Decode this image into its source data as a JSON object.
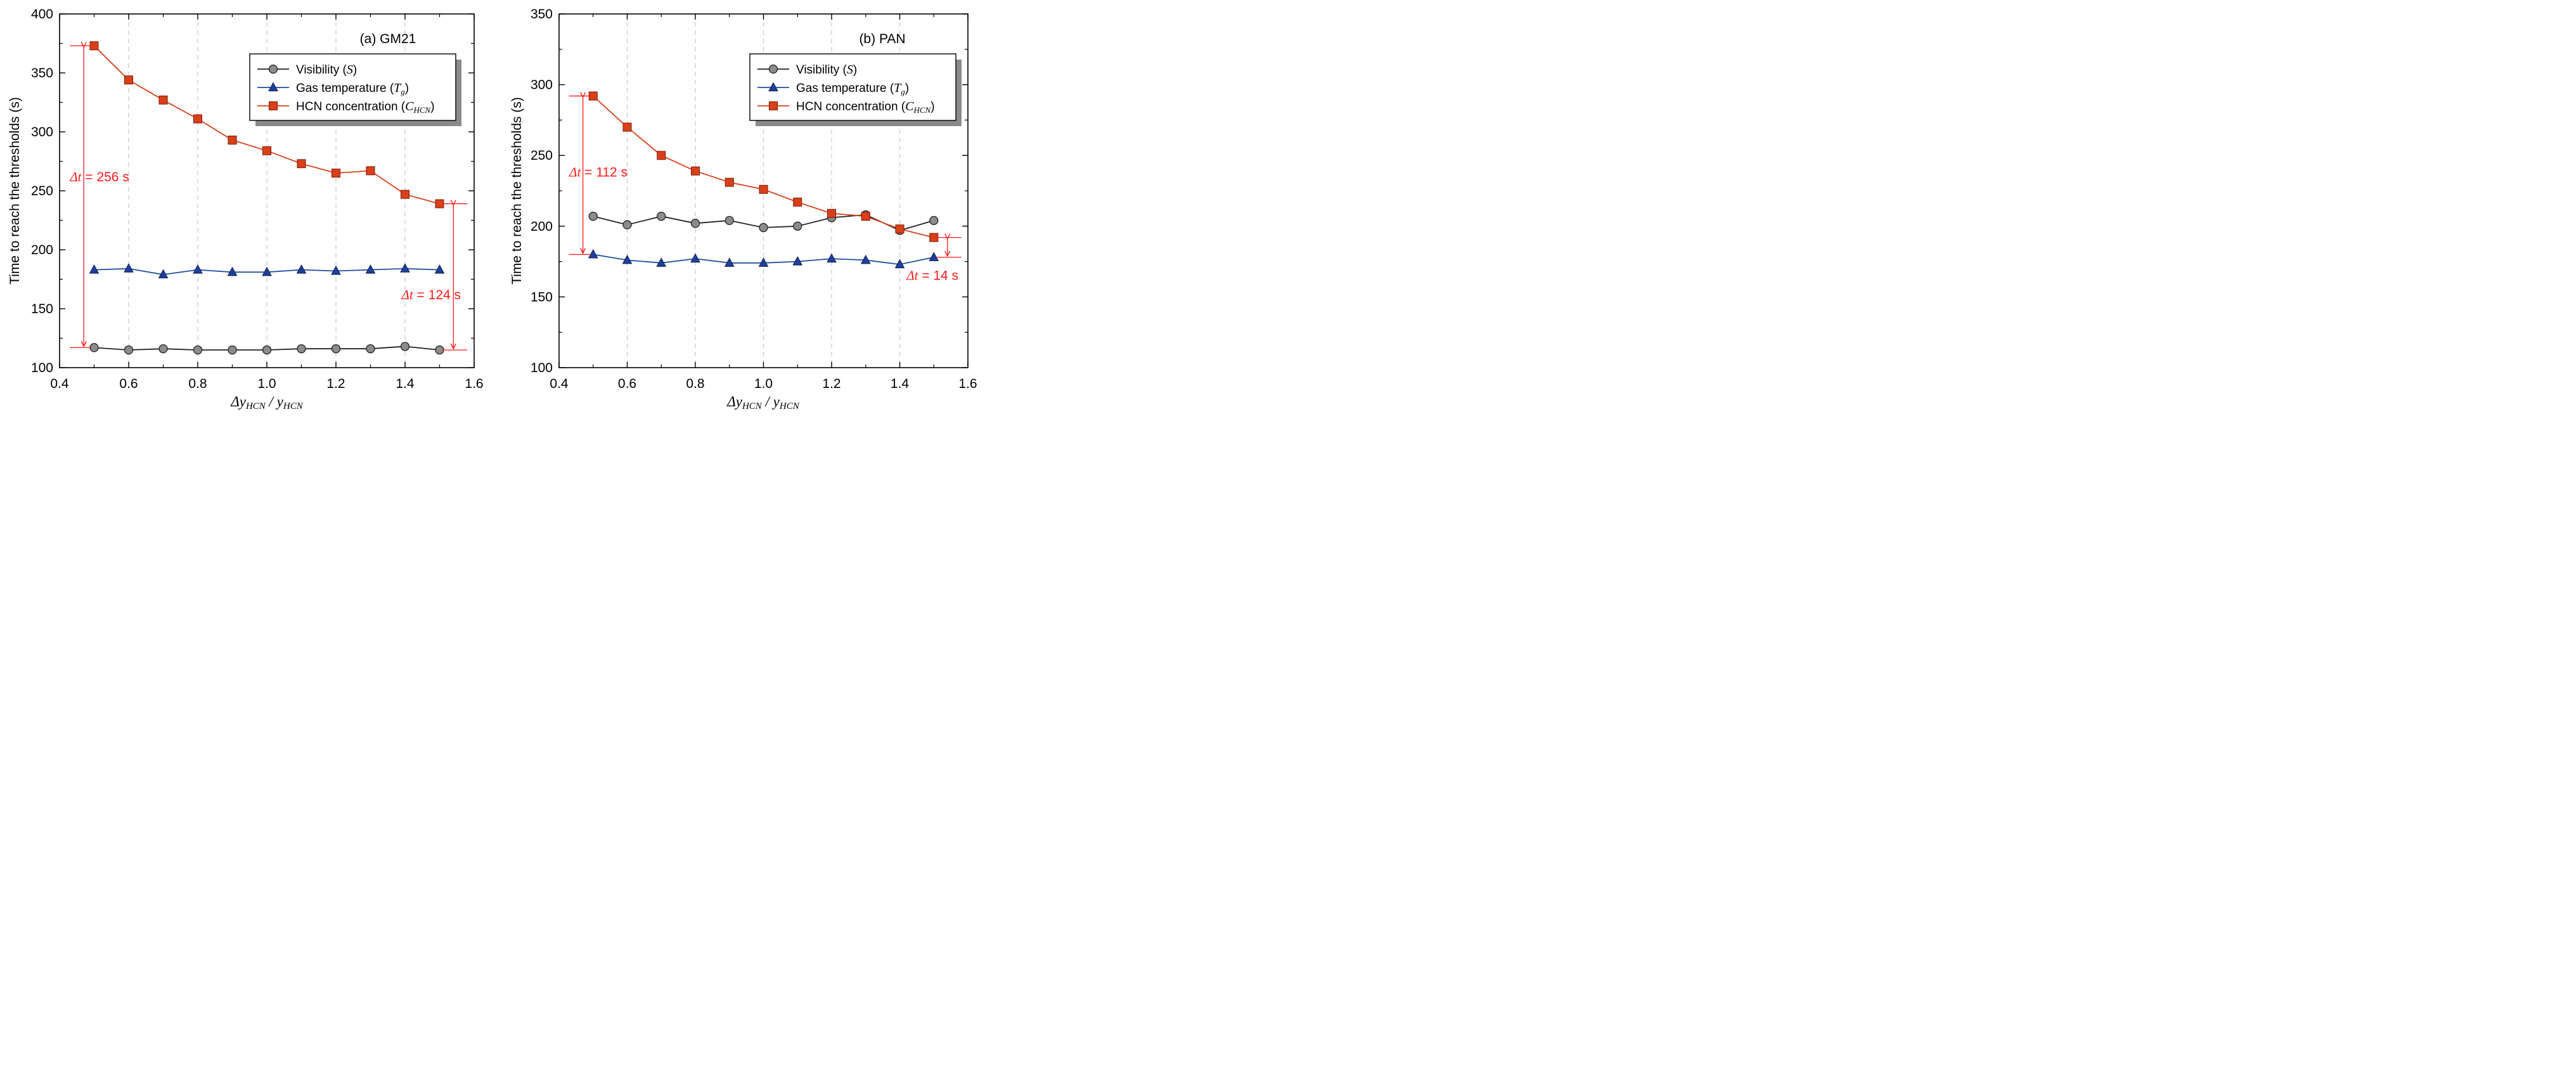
{
  "chart_data": [
    {
      "type": "line",
      "panel_label": "(a) GM21",
      "xlabel": {
        "prefix": "Δy",
        "sub1": "HCN",
        "middle": " / y",
        "sub2": "HCN"
      },
      "ylabel": "Time to reach the thresholds (s)",
      "xlim": [
        0.4,
        1.6
      ],
      "ylim": [
        100,
        400
      ],
      "xticks": [
        0.4,
        0.6,
        0.8,
        1.0,
        1.2,
        1.4,
        1.6
      ],
      "xtick_labels": [
        "0.4",
        "0.6",
        "0.8",
        "1.0",
        "1.2",
        "1.4",
        "1.6"
      ],
      "yticks": [
        100,
        150,
        200,
        250,
        300,
        350,
        400
      ],
      "ytick_labels": [
        "100",
        "150",
        "200",
        "250",
        "300",
        "350",
        "400"
      ],
      "grid": "vertical dashed",
      "legend_position": "top-right",
      "x": [
        0.5,
        0.6,
        0.7,
        0.8,
        0.9,
        1.0,
        1.1,
        1.2,
        1.3,
        1.4,
        1.5
      ],
      "series": [
        {
          "name": "Visibility",
          "symbol": "S",
          "sub": "",
          "color": "#222222",
          "marker": "circle",
          "marker_fill": "#8c8c8c",
          "values": [
            117,
            115,
            116,
            115,
            115,
            115,
            116,
            116,
            116,
            118,
            115
          ]
        },
        {
          "name": "Gas temperature",
          "symbol": "T",
          "sub": "g",
          "color": "#1f4e9e",
          "marker": "triangle",
          "marker_fill": "#1f3f99",
          "values": [
            183,
            184,
            179,
            183,
            181,
            181,
            183,
            182,
            183,
            184,
            183
          ]
        },
        {
          "name": "HCN concentration",
          "symbol": "C",
          "sub": "HCN",
          "color": "#d9401a",
          "marker": "square",
          "marker_fill": "#d9401a",
          "values": [
            373,
            344,
            327,
            311,
            293,
            284,
            273,
            265,
            267,
            247,
            239
          ]
        }
      ],
      "annotations": [
        {
          "label_var": "Δt",
          "label_rest": " = 256 s",
          "x": 0.47,
          "y_from": 117,
          "y_to": 373,
          "label_x": 0.43,
          "label_y": 258
        },
        {
          "label_var": "Δt",
          "label_rest": " = 124 s",
          "x": 1.54,
          "y_from": 115,
          "y_to": 239,
          "label_x": 1.39,
          "label_y": 158
        }
      ]
    },
    {
      "type": "line",
      "panel_label": "(b) PAN",
      "xlabel": {
        "prefix": "Δy",
        "sub1": "HCN",
        "middle": " / y",
        "sub2": "HCN"
      },
      "ylabel": "Time to reach the thresholds (s)",
      "xlim": [
        0.4,
        1.6
      ],
      "ylim": [
        100,
        350
      ],
      "xticks": [
        0.4,
        0.6,
        0.8,
        1.0,
        1.2,
        1.4,
        1.6
      ],
      "xtick_labels": [
        "0.4",
        "0.6",
        "0.8",
        "1.0",
        "1.2",
        "1.4",
        "1.6"
      ],
      "yticks": [
        100,
        150,
        200,
        250,
        300,
        350
      ],
      "ytick_labels": [
        "100",
        "150",
        "200",
        "250",
        "300",
        "350"
      ],
      "grid": "vertical dashed",
      "legend_position": "top-right",
      "x": [
        0.5,
        0.6,
        0.7,
        0.8,
        0.9,
        1.0,
        1.1,
        1.2,
        1.3,
        1.4,
        1.5
      ],
      "series": [
        {
          "name": "Visibility",
          "symbol": "S",
          "sub": "",
          "color": "#222222",
          "marker": "circle",
          "marker_fill": "#8c8c8c",
          "values": [
            207,
            201,
            207,
            202,
            204,
            199,
            200,
            206,
            208,
            197,
            204
          ]
        },
        {
          "name": "Gas temperature",
          "symbol": "T",
          "sub": "g",
          "color": "#1f4e9e",
          "marker": "triangle",
          "marker_fill": "#1f3f99",
          "values": [
            180,
            176,
            174,
            177,
            174,
            174,
            175,
            177,
            176,
            173,
            178
          ]
        },
        {
          "name": "HCN concentration",
          "symbol": "C",
          "sub": "HCN",
          "color": "#d9401a",
          "marker": "square",
          "marker_fill": "#d9401a",
          "values": [
            292,
            270,
            250,
            239,
            231,
            226,
            217,
            209,
            207,
            198,
            192
          ]
        }
      ],
      "annotations": [
        {
          "label_var": "Δt",
          "label_rest": " = 112 s",
          "x": 0.47,
          "y_from": 180,
          "y_to": 292,
          "label_x": 0.43,
          "label_y": 235
        },
        {
          "label_var": "Δt",
          "label_rest": " = 14 s",
          "x": 1.54,
          "y_from": 178,
          "y_to": 192,
          "label_x": 1.42,
          "label_y": 162
        }
      ]
    }
  ]
}
